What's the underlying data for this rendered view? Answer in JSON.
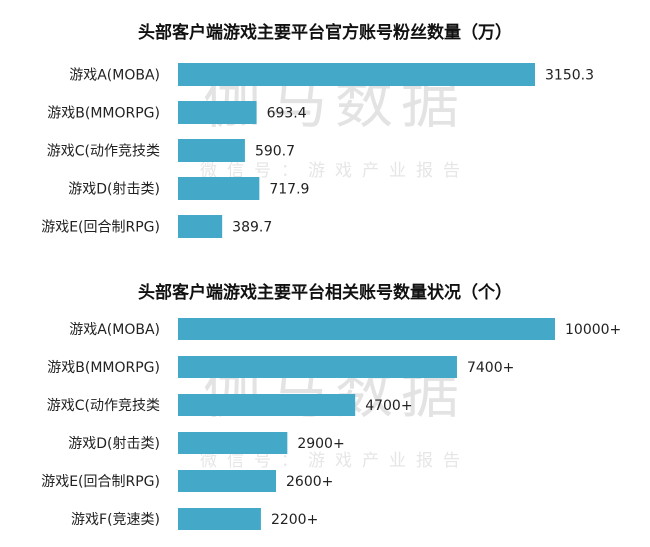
{
  "watermark": {
    "main": "伽马数据",
    "sub": "微信号：游戏产业报告"
  },
  "chart_data": [
    {
      "type": "bar",
      "orientation": "horizontal",
      "title": "头部客户端游戏主要平台官方账号粉丝数量（万）",
      "categories": [
        "游戏A(MOBA)",
        "游戏B(MMORPG)",
        "游戏C(动作竞技类",
        "游戏D(射击类)",
        "游戏E(回合制RPG)"
      ],
      "values": [
        3150.3,
        693.4,
        590.7,
        717.9,
        389.7
      ],
      "labels": [
        "3150.3",
        "693.4",
        "590.7",
        "717.9",
        "389.7"
      ],
      "xlim": [
        0,
        3150.3
      ],
      "grid": false,
      "color": "#44a9c8"
    },
    {
      "type": "bar",
      "orientation": "horizontal",
      "title": "头部客户端游戏主要平台相关账号数量状况（个）",
      "categories": [
        "游戏A(MOBA)",
        "游戏B(MMORPG)",
        "游戏C(动作竞技类",
        "游戏D(射击类)",
        "游戏E(回合制RPG)",
        "游戏F(竞速类)"
      ],
      "values": [
        10000,
        7400,
        4700,
        2900,
        2600,
        2200
      ],
      "labels": [
        "10000+",
        "7400+",
        "4700+",
        "2900+",
        "2600+",
        "2200+"
      ],
      "xlim": [
        0,
        10000
      ],
      "grid": false,
      "color": "#44a9c8"
    }
  ]
}
